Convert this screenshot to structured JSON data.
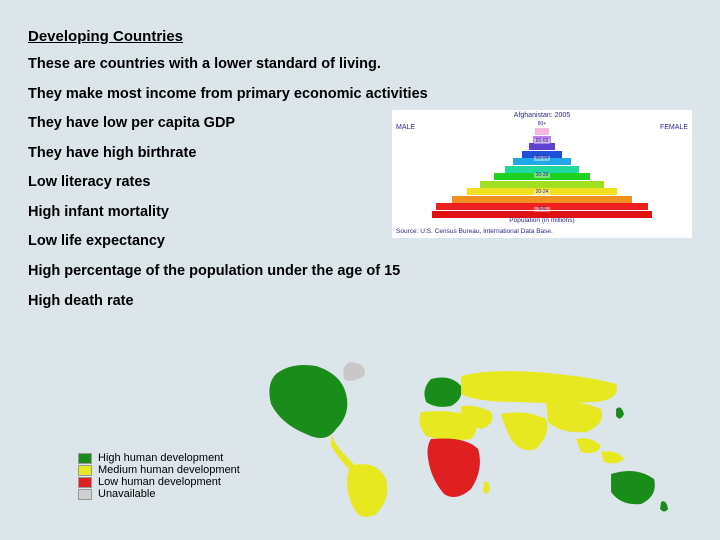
{
  "title": "Developing Countries",
  "lines_top": [
    "These are countries with a lower standard of living.",
    "They make most income from primary economic activities"
  ],
  "lines_side": [
    "They have low per capita GDP",
    "They have high birthrate",
    "Low literacy rates",
    "High infant mortality",
    "Low life expectancy"
  ],
  "lines_bottom": [
    "High percentage of the population under the age of 15",
    "High death rate"
  ],
  "pyramid": {
    "title": "Afghanistan: 2005",
    "left_label": "MALE",
    "right_label": "FEMALE",
    "age_labels": [
      "80+",
      "75-79",
      "70-74",
      "65-69",
      "60-64",
      "55-59",
      "50-54",
      "45-49",
      "40-44",
      "35-39",
      "30-34",
      "25-29",
      "20-24",
      "15-19",
      "10-14",
      "5-9",
      "0-4"
    ],
    "bands": [
      {
        "width_pct": 6,
        "color": "#f7b6e0"
      },
      {
        "width_pct": 8,
        "color": "#c080e8"
      },
      {
        "width_pct": 12,
        "color": "#6040d0"
      },
      {
        "width_pct": 18,
        "color": "#2050d8"
      },
      {
        "width_pct": 26,
        "color": "#20a8e8"
      },
      {
        "width_pct": 34,
        "color": "#20d8a0"
      },
      {
        "width_pct": 44,
        "color": "#20d020"
      },
      {
        "width_pct": 56,
        "color": "#a0e020"
      },
      {
        "width_pct": 68,
        "color": "#f0e020"
      },
      {
        "width_pct": 82,
        "color": "#f09020"
      },
      {
        "width_pct": 96,
        "color": "#f02020"
      },
      {
        "width_pct": 100,
        "color": "#e01010"
      }
    ],
    "bottom_text": "Population (in millions)",
    "source": "Source: U.S. Census Bureau, International Data Base."
  },
  "legend": {
    "items": [
      {
        "color": "#1a8c1a",
        "label": "High human development"
      },
      {
        "color": "#e8e820",
        "label": "Medium human development"
      },
      {
        "color": "#e02020",
        "label": "Low human development"
      },
      {
        "color": "#d0d0d0",
        "label": "Unavailable"
      }
    ]
  },
  "map": {
    "colors": {
      "high": "#1a8c1a",
      "medium": "#e8e820",
      "low": "#e02020",
      "unavailable": "#c8c8c8"
    }
  }
}
